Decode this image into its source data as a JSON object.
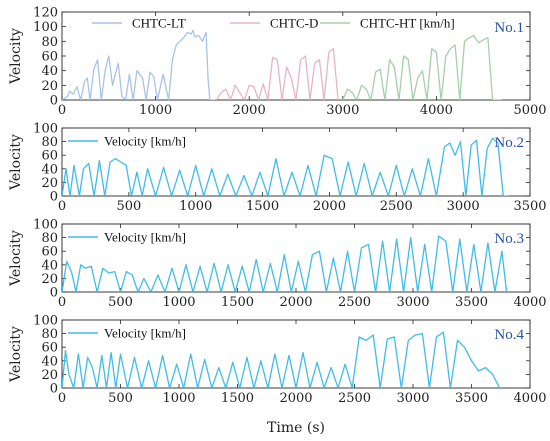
{
  "figure": {
    "xlabel": "Time (s)"
  },
  "colors": {
    "lt": "#a9c3e6",
    "d": "#e4b7bf",
    "ht": "#a5cfac",
    "v": "#3fbde8",
    "tag": "#2a50a8"
  },
  "chart_data": [
    {
      "type": "line",
      "tag": "No.1",
      "ylabel": "Velocity",
      "xlim": [
        0,
        5000
      ],
      "ylim": [
        0,
        120
      ],
      "xticks": [
        0,
        1000,
        2000,
        3000,
        4000,
        5000
      ],
      "yticks": [
        0,
        20,
        40,
        60,
        80,
        100,
        120
      ],
      "legend": "top",
      "series": [
        {
          "name": "CHTC-LT",
          "color_key": "lt",
          "x": [
            0,
            60,
            80,
            120,
            160,
            200,
            240,
            270,
            300,
            340,
            380,
            420,
            460,
            500,
            540,
            600,
            640,
            680,
            720,
            760,
            800,
            860,
            900,
            940,
            980,
            1020,
            1080,
            1140,
            1180,
            1220,
            1260,
            1300,
            1340,
            1380,
            1400,
            1420,
            1460,
            1500,
            1540,
            1560,
            1580,
            1620,
            1640
          ],
          "y": [
            0,
            5,
            12,
            8,
            18,
            0,
            25,
            30,
            0,
            42,
            55,
            0,
            40,
            60,
            20,
            50,
            5,
            0,
            35,
            0,
            40,
            30,
            0,
            38,
            32,
            0,
            35,
            0,
            55,
            75,
            80,
            85,
            92,
            90,
            95,
            86,
            88,
            80,
            92,
            30,
            0,
            0,
            0
          ]
        },
        {
          "name": "CHTC-D",
          "color_key": "d",
          "x": [
            1650,
            1700,
            1750,
            1800,
            1850,
            1900,
            1950,
            2000,
            2050,
            2100,
            2150,
            2200,
            2250,
            2300,
            2350,
            2400,
            2450,
            2500,
            2550,
            2600,
            2650,
            2700,
            2750,
            2800,
            2850,
            2900,
            2950
          ],
          "y": [
            0,
            10,
            15,
            0,
            20,
            10,
            0,
            20,
            18,
            0,
            22,
            0,
            58,
            55,
            0,
            45,
            30,
            0,
            55,
            60,
            0,
            50,
            55,
            0,
            65,
            70,
            0
          ]
        },
        {
          "name": "CHTC-HT [km/h]",
          "color_key": "ht",
          "x": [
            3000,
            3050,
            3100,
            3150,
            3200,
            3250,
            3300,
            3350,
            3400,
            3450,
            3500,
            3550,
            3600,
            3650,
            3700,
            3750,
            3800,
            3850,
            3900,
            3950,
            4000,
            4050,
            4100,
            4150,
            4200,
            4250,
            4300,
            4350,
            4400,
            4450,
            4500,
            4550,
            4600,
            4650,
            4700
          ],
          "y": [
            0,
            15,
            10,
            0,
            20,
            15,
            0,
            38,
            42,
            0,
            55,
            45,
            0,
            60,
            55,
            0,
            30,
            40,
            0,
            70,
            65,
            0,
            60,
            70,
            75,
            0,
            80,
            85,
            88,
            78,
            82,
            85,
            0,
            0,
            0
          ]
        }
      ]
    },
    {
      "type": "line",
      "tag": "No.2",
      "ylabel": "Velocity",
      "xlim": [
        0,
        3500
      ],
      "ylim": [
        0,
        100
      ],
      "xticks": [
        0,
        500,
        1000,
        1500,
        2000,
        2500,
        3000,
        3500
      ],
      "yticks": [
        0,
        20,
        40,
        60,
        80,
        100
      ],
      "legend": "top-left",
      "series": [
        {
          "name": "Velocity [km/h]",
          "color_key": "v",
          "x": [
            0,
            30,
            60,
            90,
            130,
            160,
            200,
            240,
            280,
            320,
            360,
            400,
            440,
            480,
            520,
            560,
            600,
            640,
            700,
            760,
            820,
            880,
            940,
            1000,
            1060,
            1120,
            1180,
            1240,
            1300,
            1360,
            1420,
            1480,
            1540,
            1600,
            1660,
            1720,
            1780,
            1840,
            1900,
            1960,
            2020,
            2080,
            2140,
            2200,
            2260,
            2320,
            2380,
            2440,
            2500,
            2560,
            2620,
            2680,
            2740,
            2800,
            2860,
            2900,
            2940,
            2980,
            3020,
            3060,
            3100,
            3140,
            3180,
            3220,
            3260,
            3300,
            3340
          ],
          "y": [
            0,
            40,
            0,
            45,
            0,
            40,
            48,
            0,
            52,
            0,
            50,
            55,
            50,
            45,
            0,
            35,
            0,
            40,
            0,
            42,
            0,
            38,
            0,
            45,
            0,
            40,
            0,
            32,
            0,
            30,
            0,
            35,
            0,
            55,
            0,
            35,
            0,
            45,
            0,
            60,
            55,
            0,
            50,
            0,
            48,
            0,
            35,
            0,
            45,
            0,
            40,
            0,
            55,
            0,
            72,
            78,
            60,
            80,
            0,
            75,
            82,
            0,
            70,
            85,
            78,
            0,
            0
          ]
        }
      ]
    },
    {
      "type": "line",
      "tag": "No.3",
      "ylabel": "Velocity",
      "xlim": [
        0,
        4000
      ],
      "ylim": [
        0,
        100
      ],
      "xticks": [
        0,
        500,
        1000,
        1500,
        2000,
        2500,
        3000,
        3500,
        4000
      ],
      "yticks": [
        0,
        20,
        40,
        60,
        80,
        100
      ],
      "legend": "top-left",
      "series": [
        {
          "name": "Velocity [km/h]",
          "color_key": "v",
          "x": [
            0,
            40,
            80,
            120,
            160,
            200,
            250,
            300,
            350,
            400,
            450,
            500,
            550,
            600,
            650,
            700,
            760,
            820,
            880,
            940,
            1000,
            1060,
            1120,
            1180,
            1240,
            1300,
            1360,
            1420,
            1480,
            1540,
            1600,
            1660,
            1720,
            1780,
            1840,
            1900,
            1960,
            2020,
            2080,
            2140,
            2200,
            2260,
            2320,
            2380,
            2440,
            2500,
            2560,
            2620,
            2680,
            2740,
            2800,
            2860,
            2920,
            2980,
            3040,
            3100,
            3160,
            3220,
            3280,
            3340,
            3400,
            3460,
            3520,
            3580,
            3640,
            3700,
            3760,
            3800
          ],
          "y": [
            0,
            45,
            30,
            0,
            40,
            35,
            38,
            0,
            35,
            28,
            30,
            0,
            30,
            25,
            0,
            20,
            0,
            25,
            0,
            35,
            0,
            40,
            0,
            38,
            0,
            42,
            0,
            40,
            0,
            38,
            0,
            48,
            0,
            42,
            0,
            55,
            0,
            45,
            0,
            55,
            60,
            0,
            50,
            0,
            60,
            0,
            65,
            70,
            0,
            75,
            0,
            78,
            0,
            80,
            0,
            70,
            0,
            82,
            75,
            0,
            78,
            0,
            70,
            0,
            72,
            0,
            60,
            0
          ]
        }
      ]
    },
    {
      "type": "line",
      "tag": "No.4",
      "ylabel": "Velocity",
      "xlim": [
        0,
        4000
      ],
      "ylim": [
        0,
        100
      ],
      "xticks": [
        0,
        500,
        1000,
        1500,
        2000,
        2500,
        3000,
        3500,
        4000
      ],
      "yticks": [
        0,
        20,
        40,
        60,
        80,
        100
      ],
      "legend": "top-left",
      "series": [
        {
          "name": "Velocity [km/h]",
          "color_key": "v",
          "x": [
            0,
            30,
            60,
            100,
            140,
            180,
            220,
            260,
            300,
            340,
            380,
            420,
            460,
            500,
            560,
            620,
            680,
            740,
            800,
            860,
            920,
            980,
            1040,
            1100,
            1160,
            1220,
            1280,
            1340,
            1400,
            1460,
            1520,
            1580,
            1640,
            1700,
            1760,
            1820,
            1880,
            1940,
            2000,
            2060,
            2120,
            2180,
            2240,
            2300,
            2360,
            2420,
            2480,
            2540,
            2600,
            2660,
            2720,
            2780,
            2840,
            2900,
            2960,
            3020,
            3080,
            3140,
            3200,
            3260,
            3320,
            3380,
            3440,
            3500,
            3560,
            3620,
            3680,
            3740
          ],
          "y": [
            0,
            55,
            20,
            0,
            50,
            0,
            45,
            30,
            0,
            48,
            0,
            52,
            0,
            50,
            0,
            45,
            0,
            40,
            0,
            48,
            0,
            35,
            0,
            50,
            0,
            42,
            0,
            30,
            0,
            38,
            0,
            45,
            0,
            40,
            0,
            50,
            0,
            48,
            0,
            52,
            0,
            38,
            0,
            30,
            0,
            35,
            0,
            75,
            70,
            78,
            0,
            72,
            75,
            0,
            70,
            78,
            80,
            0,
            75,
            82,
            0,
            70,
            60,
            40,
            25,
            30,
            20,
            0
          ]
        }
      ]
    }
  ]
}
